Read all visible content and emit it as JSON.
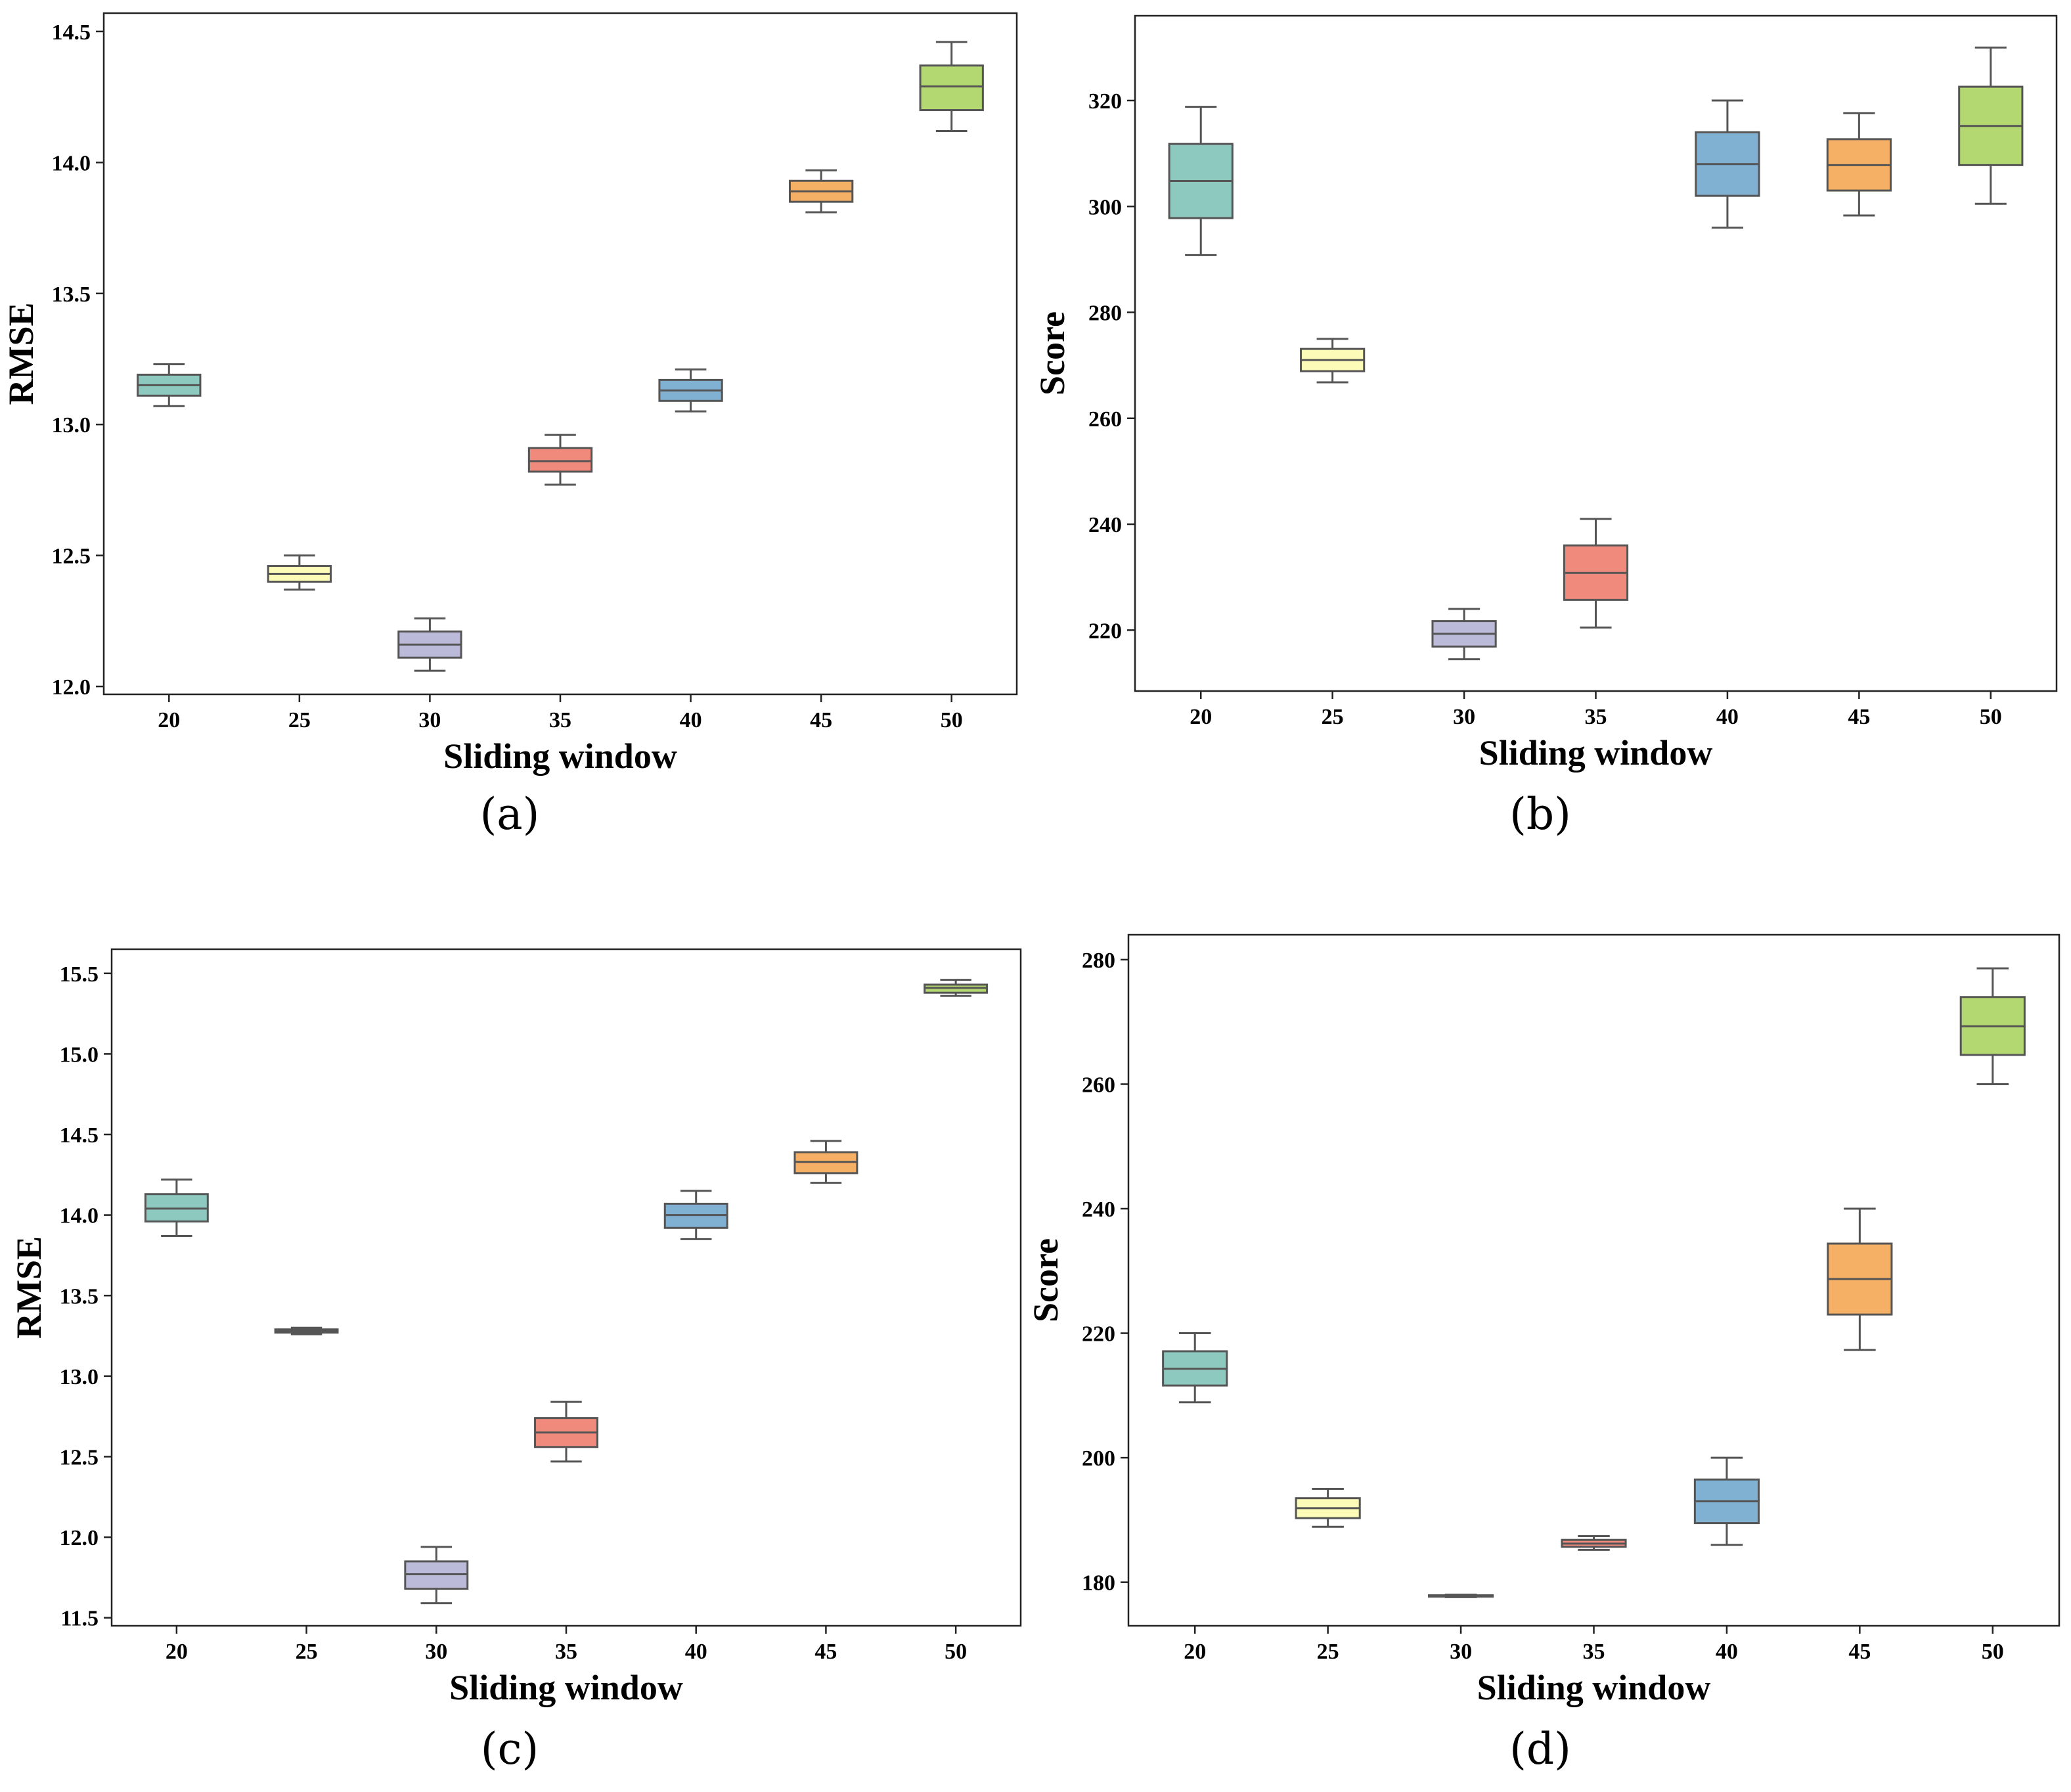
{
  "chart_data": [
    {
      "panel": "a",
      "type": "box",
      "caption": "(a)",
      "xlabel": "Sliding window",
      "ylabel": "RMSE",
      "categories": [
        "20",
        "25",
        "30",
        "35",
        "40",
        "45",
        "50"
      ],
      "ylim": [
        11.97,
        14.57
      ],
      "yticks": [
        "12.0",
        "12.5",
        "13.0",
        "13.5",
        "14.0",
        "14.5"
      ],
      "boxes": [
        {
          "min": 13.07,
          "q1": 13.11,
          "median": 13.15,
          "q3": 13.19,
          "max": 13.23
        },
        {
          "min": 12.37,
          "q1": 12.4,
          "median": 12.43,
          "q3": 12.46,
          "max": 12.5
        },
        {
          "min": 12.06,
          "q1": 12.11,
          "median": 12.16,
          "q3": 12.21,
          "max": 12.26
        },
        {
          "min": 12.77,
          "q1": 12.82,
          "median": 12.86,
          "q3": 12.91,
          "max": 12.96
        },
        {
          "min": 13.05,
          "q1": 13.09,
          "median": 13.13,
          "q3": 13.17,
          "max": 13.21
        },
        {
          "min": 13.81,
          "q1": 13.85,
          "median": 13.89,
          "q3": 13.93,
          "max": 13.97
        },
        {
          "min": 14.12,
          "q1": 14.2,
          "median": 14.29,
          "q3": 14.37,
          "max": 14.46
        }
      ]
    },
    {
      "panel": "b",
      "type": "box",
      "caption": "(b)",
      "xlabel": "Sliding window",
      "ylabel": "Score",
      "categories": [
        "20",
        "25",
        "30",
        "35",
        "40",
        "45",
        "50"
      ],
      "ylim": [
        208.5,
        336.0
      ],
      "yticks": [
        "220",
        "240",
        "260",
        "280",
        "300",
        "320"
      ],
      "boxes": [
        {
          "min": 290.8,
          "q1": 297.8,
          "median": 304.8,
          "q3": 311.8,
          "max": 318.8
        },
        {
          "min": 266.8,
          "q1": 268.9,
          "median": 271.0,
          "q3": 273.1,
          "max": 275.0
        },
        {
          "min": 214.5,
          "q1": 216.9,
          "median": 219.3,
          "q3": 221.7,
          "max": 224.0
        },
        {
          "min": 220.5,
          "q1": 225.7,
          "median": 230.8,
          "q3": 236.0,
          "max": 241.0
        },
        {
          "min": 296.0,
          "q1": 302.0,
          "median": 308.0,
          "q3": 314.0,
          "max": 320.0
        },
        {
          "min": 298.3,
          "q1": 303.0,
          "median": 307.8,
          "q3": 312.7,
          "max": 317.6
        },
        {
          "min": 300.5,
          "q1": 307.8,
          "median": 315.2,
          "q3": 322.6,
          "max": 330.0
        }
      ]
    },
    {
      "panel": "c",
      "type": "box",
      "caption": "(c)",
      "xlabel": "Sliding window",
      "ylabel": "RMSE",
      "categories": [
        "20",
        "25",
        "30",
        "35",
        "40",
        "45",
        "50"
      ],
      "ylim": [
        11.45,
        15.65
      ],
      "yticks": [
        "11.5",
        "12.0",
        "12.5",
        "13.0",
        "13.5",
        "14.0",
        "14.5",
        "15.0",
        "15.5"
      ],
      "boxes": [
        {
          "min": 13.87,
          "q1": 13.96,
          "median": 14.04,
          "q3": 14.13,
          "max": 14.22
        },
        {
          "min": 13.26,
          "q1": 13.27,
          "median": 13.28,
          "q3": 13.29,
          "max": 13.3
        },
        {
          "min": 11.59,
          "q1": 11.68,
          "median": 11.77,
          "q3": 11.85,
          "max": 11.94
        },
        {
          "min": 12.47,
          "q1": 12.56,
          "median": 12.65,
          "q3": 12.74,
          "max": 12.84
        },
        {
          "min": 13.85,
          "q1": 13.92,
          "median": 14.0,
          "q3": 14.07,
          "max": 14.15
        },
        {
          "min": 14.2,
          "q1": 14.26,
          "median": 14.33,
          "q3": 14.39,
          "max": 14.46
        },
        {
          "min": 15.36,
          "q1": 15.38,
          "median": 15.41,
          "q3": 15.43,
          "max": 15.46
        }
      ]
    },
    {
      "panel": "d",
      "type": "box",
      "caption": "(d)",
      "xlabel": "Sliding window",
      "ylabel": "Score",
      "categories": [
        "20",
        "25",
        "30",
        "35",
        "40",
        "45",
        "50"
      ],
      "ylim": [
        173.0,
        284.0
      ],
      "yticks": [
        "180",
        "200",
        "220",
        "240",
        "260",
        "280"
      ],
      "boxes": [
        {
          "min": 208.9,
          "q1": 211.6,
          "median": 214.3,
          "q3": 217.1,
          "max": 220.0
        },
        {
          "min": 188.9,
          "q1": 190.3,
          "median": 191.9,
          "q3": 193.5,
          "max": 195.0
        },
        {
          "min": 177.6,
          "q1": 177.7,
          "median": 177.8,
          "q3": 177.9,
          "max": 178.0
        },
        {
          "min": 185.2,
          "q1": 185.7,
          "median": 186.2,
          "q3": 186.8,
          "max": 187.4
        },
        {
          "min": 186.0,
          "q1": 189.5,
          "median": 193.0,
          "q3": 196.5,
          "max": 200.0
        },
        {
          "min": 217.3,
          "q1": 223.0,
          "median": 228.7,
          "q3": 234.4,
          "max": 240.0
        },
        {
          "min": 260.0,
          "q1": 264.7,
          "median": 269.3,
          "q3": 274.0,
          "max": 278.6
        }
      ]
    }
  ],
  "palette": [
    "#8ec9bf",
    "#fcfcb8",
    "#bcbad9",
    "#ef8a7c",
    "#80b0d2",
    "#f5b066",
    "#b3d771"
  ]
}
